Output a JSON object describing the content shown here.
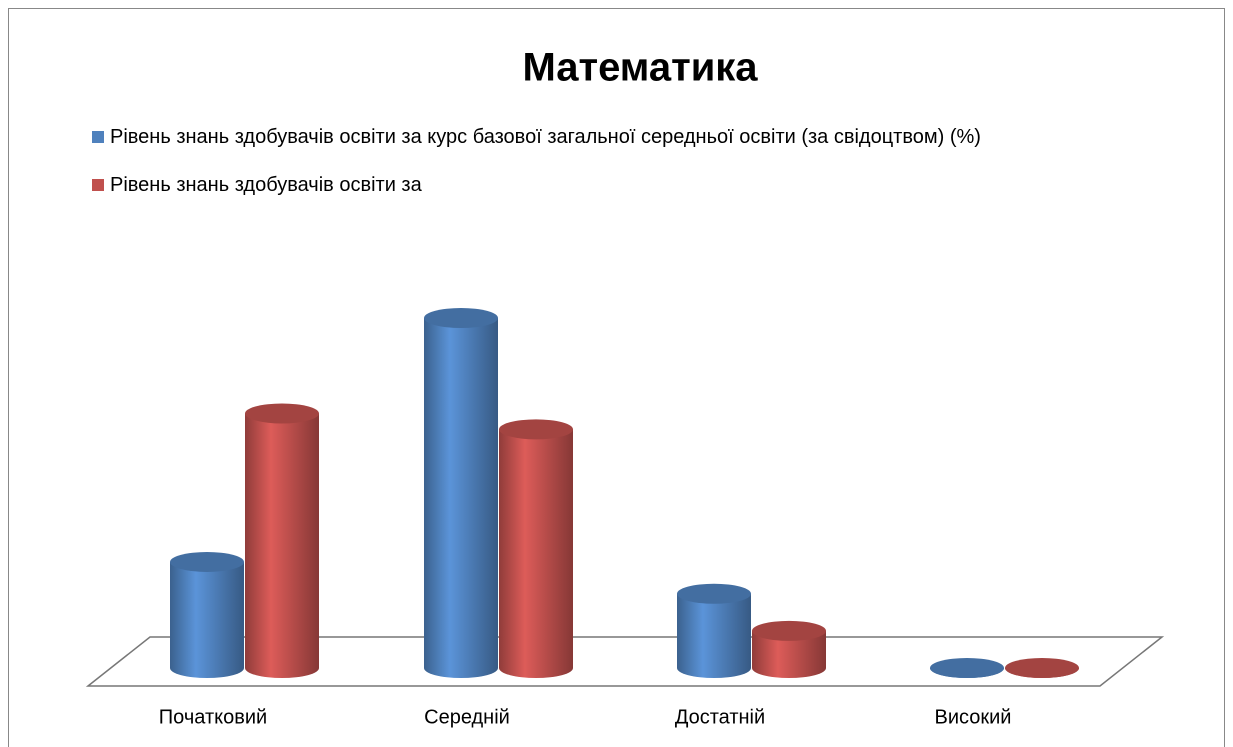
{
  "chart_data": {
    "type": "bar3d",
    "title": "Математика",
    "categories": [
      "Початковий",
      "Середній",
      "Достатній",
      "Високий"
    ],
    "series": [
      {
        "name": "Рівень знань здобувачів освіти за курс базової загальної середньої освіти (за свідоцтвом) (%)",
        "color": "#4f81bd",
        "values": [
          20,
          66,
          14,
          0
        ]
      },
      {
        "name": "Рівень знань здобувачів освіти за",
        "color": "#c0504d",
        "values": [
          48,
          45,
          7,
          0
        ]
      }
    ],
    "legend": "top"
  }
}
